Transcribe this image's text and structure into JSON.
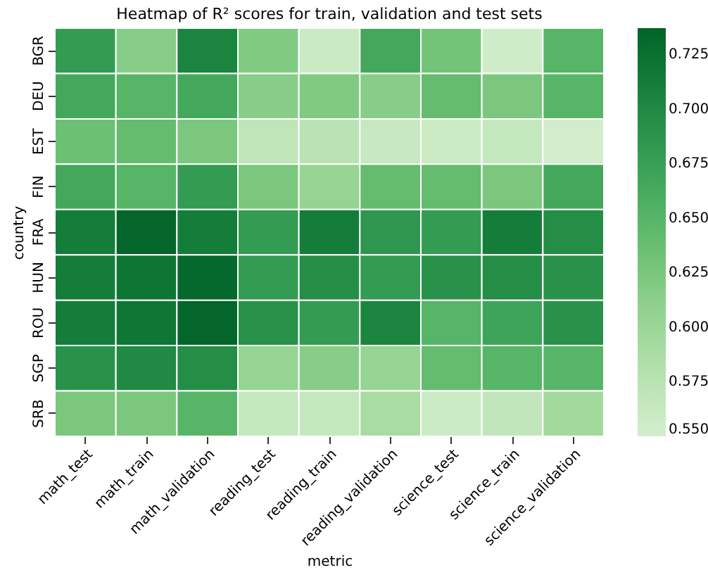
{
  "chart_data": {
    "type": "heatmap",
    "title": "Heatmap of R² scores for train, validation and test sets",
    "xlabel": "metric",
    "ylabel": "country",
    "categories": [
      "math_test",
      "math_train",
      "math_validation",
      "reading_test",
      "reading_train",
      "reading_validation",
      "science_test",
      "science_train",
      "science_validation"
    ],
    "y_categories": [
      "BGR",
      "DEU",
      "EST",
      "FIN",
      "FRA",
      "HUN",
      "ROU",
      "SGP",
      "SRB"
    ],
    "cells": [
      [
        0.68,
        0.615,
        0.705,
        0.62,
        0.56,
        0.665,
        0.63,
        0.555,
        0.65
      ],
      [
        0.665,
        0.65,
        0.665,
        0.615,
        0.62,
        0.615,
        0.64,
        0.625,
        0.65
      ],
      [
        0.635,
        0.64,
        0.625,
        0.57,
        0.575,
        0.562,
        0.558,
        0.565,
        0.552
      ],
      [
        0.665,
        0.65,
        0.68,
        0.625,
        0.605,
        0.64,
        0.64,
        0.625,
        0.665
      ],
      [
        0.712,
        0.735,
        0.712,
        0.68,
        0.712,
        0.685,
        0.68,
        0.712,
        0.695
      ],
      [
        0.712,
        0.72,
        0.733,
        0.68,
        0.695,
        0.68,
        0.69,
        0.695,
        0.69
      ],
      [
        0.712,
        0.718,
        0.735,
        0.69,
        0.68,
        0.705,
        0.65,
        0.67,
        0.69
      ],
      [
        0.69,
        0.7,
        0.695,
        0.605,
        0.615,
        0.605,
        0.64,
        0.65,
        0.65
      ],
      [
        0.625,
        0.625,
        0.65,
        0.565,
        0.565,
        0.59,
        0.558,
        0.568,
        0.595
      ]
    ],
    "clim": [
      0.55,
      0.737
    ],
    "cticks": [
      {
        "value": 0.55,
        "label": "0.550"
      },
      {
        "value": 0.575,
        "label": "0.575"
      },
      {
        "value": 0.6,
        "label": "0.600"
      },
      {
        "value": 0.625,
        "label": "0.625"
      },
      {
        "value": 0.65,
        "label": "0.650"
      },
      {
        "value": 0.675,
        "label": "0.675"
      },
      {
        "value": 0.7,
        "label": "0.700"
      },
      {
        "value": 0.725,
        "label": "0.725"
      }
    ]
  }
}
